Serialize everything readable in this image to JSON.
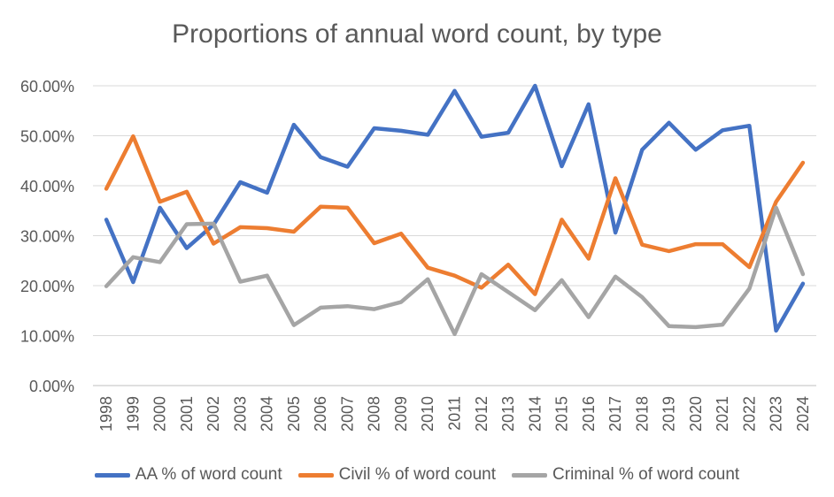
{
  "chart_data": {
    "type": "line",
    "title": "Proportions of annual word count, by type",
    "xlabel": "",
    "ylabel": "",
    "ylim": [
      0,
      60
    ],
    "yticks": [
      "0.00%",
      "10.00%",
      "20.00%",
      "30.00%",
      "40.00%",
      "50.00%",
      "60.00%"
    ],
    "grid": true,
    "legend_position": "bottom",
    "categories": [
      "1998",
      "1999",
      "2000",
      "2001",
      "2002",
      "2003",
      "2004",
      "2005",
      "2006",
      "2007",
      "2008",
      "2009",
      "2010",
      "2011",
      "2012",
      "2013",
      "2014",
      "2015",
      "2016",
      "2017",
      "2018",
      "2019",
      "2020",
      "2021",
      "2022",
      "2023",
      "2024"
    ],
    "series": [
      {
        "name": "AA % of word count",
        "color": "#4472C4",
        "values": [
          33.2,
          20.7,
          35.6,
          27.5,
          32.2,
          40.7,
          38.6,
          52.2,
          45.7,
          43.8,
          51.5,
          51.0,
          50.2,
          59.0,
          49.8,
          50.6,
          60.0,
          43.9,
          56.3,
          30.6,
          47.2,
          52.6,
          47.2,
          51.1,
          52.0,
          11.0,
          20.4
        ]
      },
      {
        "name": "Civil % of word count",
        "color": "#ED7D31",
        "values": [
          39.4,
          49.9,
          36.8,
          38.8,
          28.4,
          31.7,
          31.5,
          30.8,
          35.8,
          35.6,
          28.5,
          30.4,
          23.6,
          22.0,
          19.6,
          24.2,
          18.3,
          33.2,
          25.4,
          41.5,
          28.2,
          26.9,
          28.3,
          28.3,
          23.7,
          36.8,
          44.6
        ]
      },
      {
        "name": "Criminal % of word count",
        "color": "#A5A5A5",
        "values": [
          19.9,
          25.7,
          24.7,
          32.3,
          32.4,
          20.8,
          22.0,
          12.1,
          15.6,
          15.9,
          15.3,
          16.7,
          21.3,
          10.3,
          22.3,
          18.7,
          15.1,
          21.1,
          13.7,
          21.8,
          17.7,
          11.9,
          11.7,
          12.2,
          19.4,
          35.6,
          22.3
        ]
      }
    ]
  }
}
